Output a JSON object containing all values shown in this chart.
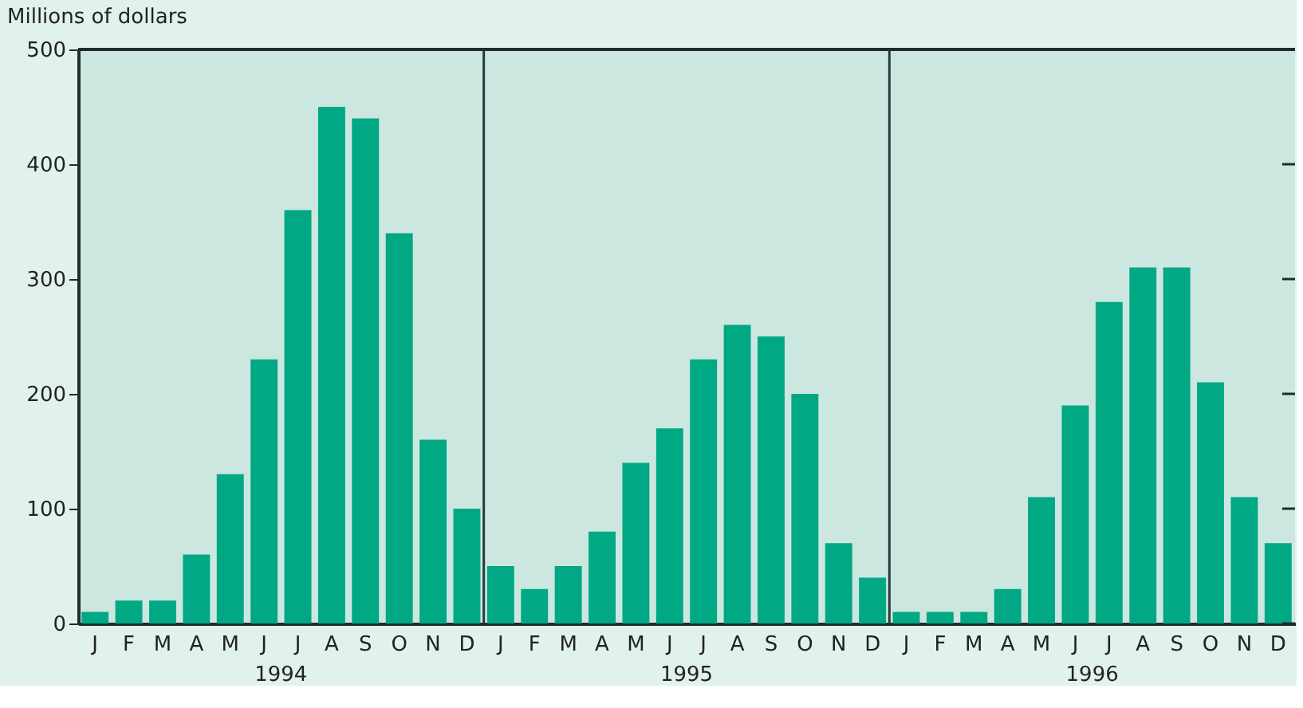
{
  "chart_data": {
    "type": "bar",
    "ylabel": "Millions of dollars",
    "categories": [
      "J",
      "F",
      "M",
      "A",
      "M",
      "J",
      "J",
      "A",
      "S",
      "O",
      "N",
      "D",
      "J",
      "F",
      "M",
      "A",
      "M",
      "J",
      "J",
      "A",
      "S",
      "O",
      "N",
      "D",
      "J",
      "F",
      "M",
      "A",
      "M",
      "J",
      "J",
      "A",
      "S",
      "O",
      "N",
      "D"
    ],
    "values": [
      10,
      20,
      20,
      60,
      130,
      230,
      360,
      450,
      440,
      340,
      160,
      100,
      50,
      30,
      50,
      80,
      140,
      170,
      230,
      260,
      250,
      200,
      70,
      40,
      10,
      10,
      10,
      30,
      110,
      190,
      280,
      310,
      310,
      210,
      110,
      70
    ],
    "color": "#00a884",
    "ylim": [
      0,
      500
    ],
    "yticks": [
      0,
      100,
      200,
      300,
      400,
      500
    ],
    "annotations": [
      "1994",
      "1995",
      "1996"
    ],
    "grid": false
  }
}
